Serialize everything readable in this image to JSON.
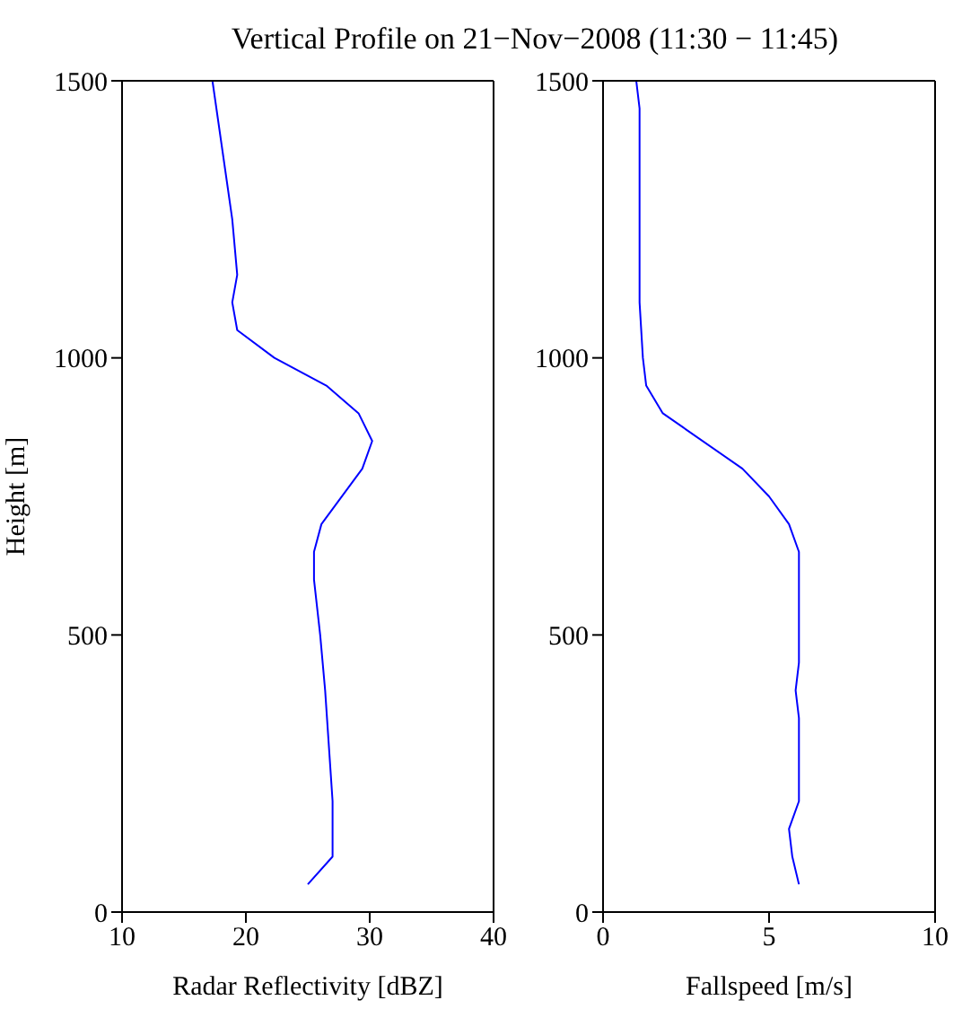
{
  "chart_data": [
    {
      "type": "line",
      "title": "Vertical Profile on 21−Nov−2008 (11:30 − 11:45)",
      "xlabel": "Radar Reflectivity [dBZ]",
      "ylabel": "Height [m]",
      "xlim": [
        10,
        40
      ],
      "xticks": [
        10,
        20,
        30,
        40
      ],
      "ylim": [
        0,
        1500
      ],
      "yticks": [
        0,
        500,
        1000,
        1500
      ],
      "marker": "none",
      "series": [
        {
          "color": "#0000ff",
          "x": [
            25,
            27,
            27,
            26.4,
            26,
            25.5,
            25.5,
            26.1,
            29.4,
            30.2,
            29.1,
            26.5,
            22.3,
            19.3,
            18.9,
            19.3,
            18.9,
            17.3
          ],
          "values": [
            50,
            100,
            200,
            400,
            500,
            600,
            650,
            700,
            800,
            850,
            900,
            950,
            1000,
            1050,
            1100,
            1150,
            1250,
            1500
          ]
        }
      ]
    },
    {
      "type": "line",
      "xlabel": "Fallspeed [m/s]",
      "xlim": [
        0,
        10
      ],
      "xticks": [
        0,
        5,
        10
      ],
      "ylim": [
        0,
        1500
      ],
      "yticks": [
        0,
        500,
        1000,
        1500
      ],
      "marker": "none",
      "series": [
        {
          "color": "#0000ff",
          "x": [
            5.9,
            5.7,
            5.6,
            5.9,
            5.9,
            5.8,
            5.9,
            5.9,
            5.6,
            5.0,
            4.2,
            1.8,
            1.3,
            1.2,
            1.1,
            1.1,
            1.0
          ],
          "values": [
            50,
            100,
            150,
            200,
            350,
            400,
            450,
            650,
            700,
            750,
            800,
            900,
            950,
            1000,
            1100,
            1450,
            1500
          ]
        }
      ]
    }
  ]
}
